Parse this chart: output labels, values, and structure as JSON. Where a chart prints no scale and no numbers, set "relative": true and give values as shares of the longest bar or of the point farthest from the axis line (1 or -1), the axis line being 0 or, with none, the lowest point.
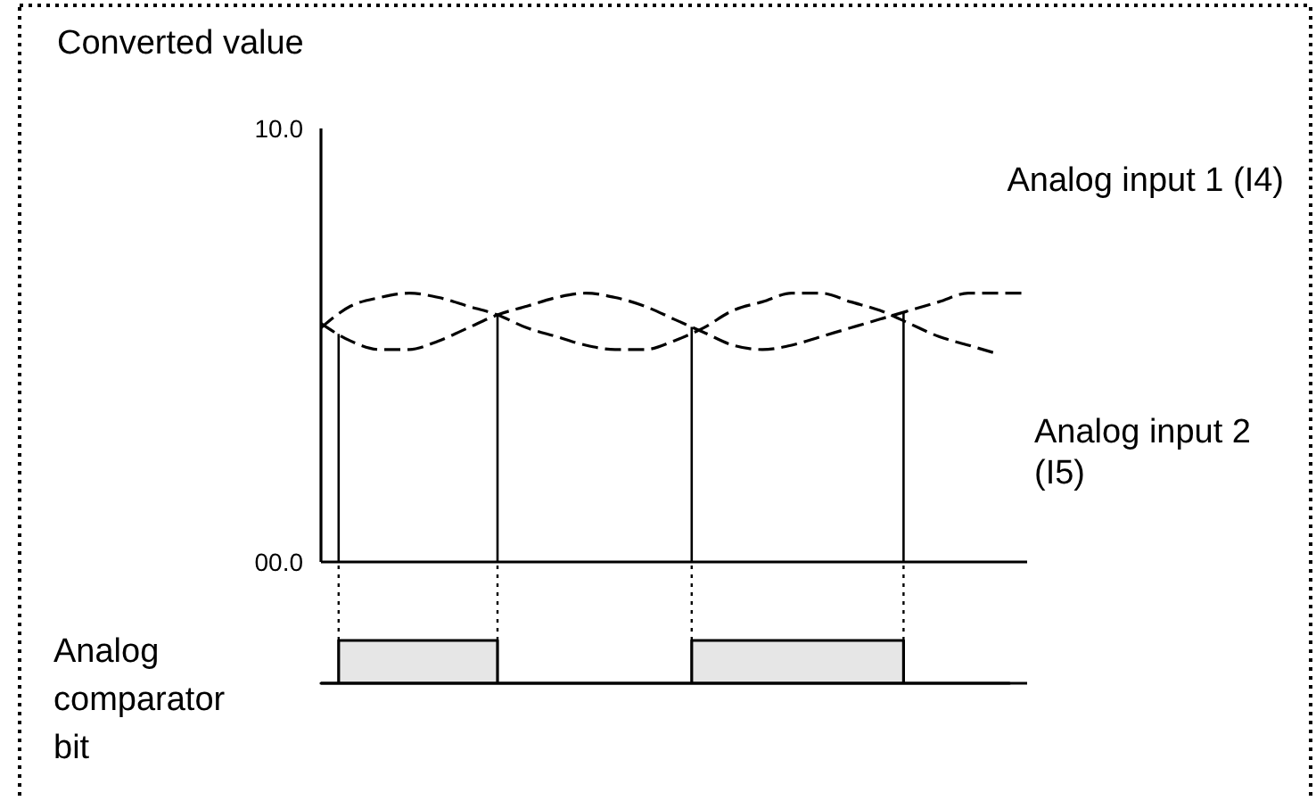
{
  "chart_data": [
    {
      "type": "line",
      "ylabel": "Converted value",
      "categories": [
        null,
        null,
        null,
        null,
        null,
        null,
        null,
        null,
        null,
        null,
        null,
        null,
        null,
        null,
        null,
        null,
        null,
        null,
        null,
        null,
        null,
        null,
        null,
        null,
        null
      ],
      "ylim": [
        0,
        10
      ],
      "yticks": [
        {
          "value": 0,
          "label": "00.0"
        },
        {
          "value": 10,
          "label": "10.0"
        }
      ],
      "line_style": "dashed",
      "series": [
        {
          "name": "Analog input 1 (I4)",
          "color": "#000000",
          "values": [
            5.5,
            5.1,
            4.9,
            4.9,
            5.1,
            5.4,
            5.7,
            5.9,
            6.1,
            6.2,
            6.1,
            5.9,
            5.6,
            5.3,
            5.0,
            4.9,
            5.0,
            5.2,
            5.4,
            5.6,
            5.8,
            6.0,
            6.2,
            6.2,
            6.2
          ]
        },
        {
          "name": "Analog input 2 (I5)",
          "color": "#000000",
          "values": [
            5.4,
            5.9,
            6.1,
            6.2,
            6.1,
            5.9,
            5.7,
            5.4,
            5.2,
            5.0,
            4.9,
            4.9,
            5.1,
            5.4,
            5.8,
            6.0,
            6.2,
            6.2,
            6.0,
            5.8,
            5.5,
            5.2,
            5.0,
            4.8,
            null
          ]
        }
      ]
    },
    {
      "type": "area",
      "ylabel": "Analog comparator bit",
      "relative": true,
      "categories": [
        null,
        null,
        null,
        null,
        null,
        null,
        null,
        null,
        null,
        null,
        null,
        null,
        null,
        null,
        null,
        null,
        null,
        null,
        null,
        null,
        null,
        null,
        null,
        null,
        null,
        null,
        null,
        null,
        null,
        null,
        null,
        null,
        null,
        null,
        null,
        null,
        null,
        null,
        null,
        null
      ],
      "color": "#e6e6e6",
      "values": [
        0,
        1,
        1,
        1,
        1,
        1,
        1,
        1,
        1,
        1,
        0,
        0,
        0,
        0,
        0,
        0,
        0,
        0,
        0,
        0,
        0,
        1,
        1,
        1,
        1,
        1,
        1,
        1,
        1,
        1,
        1,
        1,
        1,
        0,
        0,
        0,
        0,
        0,
        0,
        0
      ]
    }
  ]
}
